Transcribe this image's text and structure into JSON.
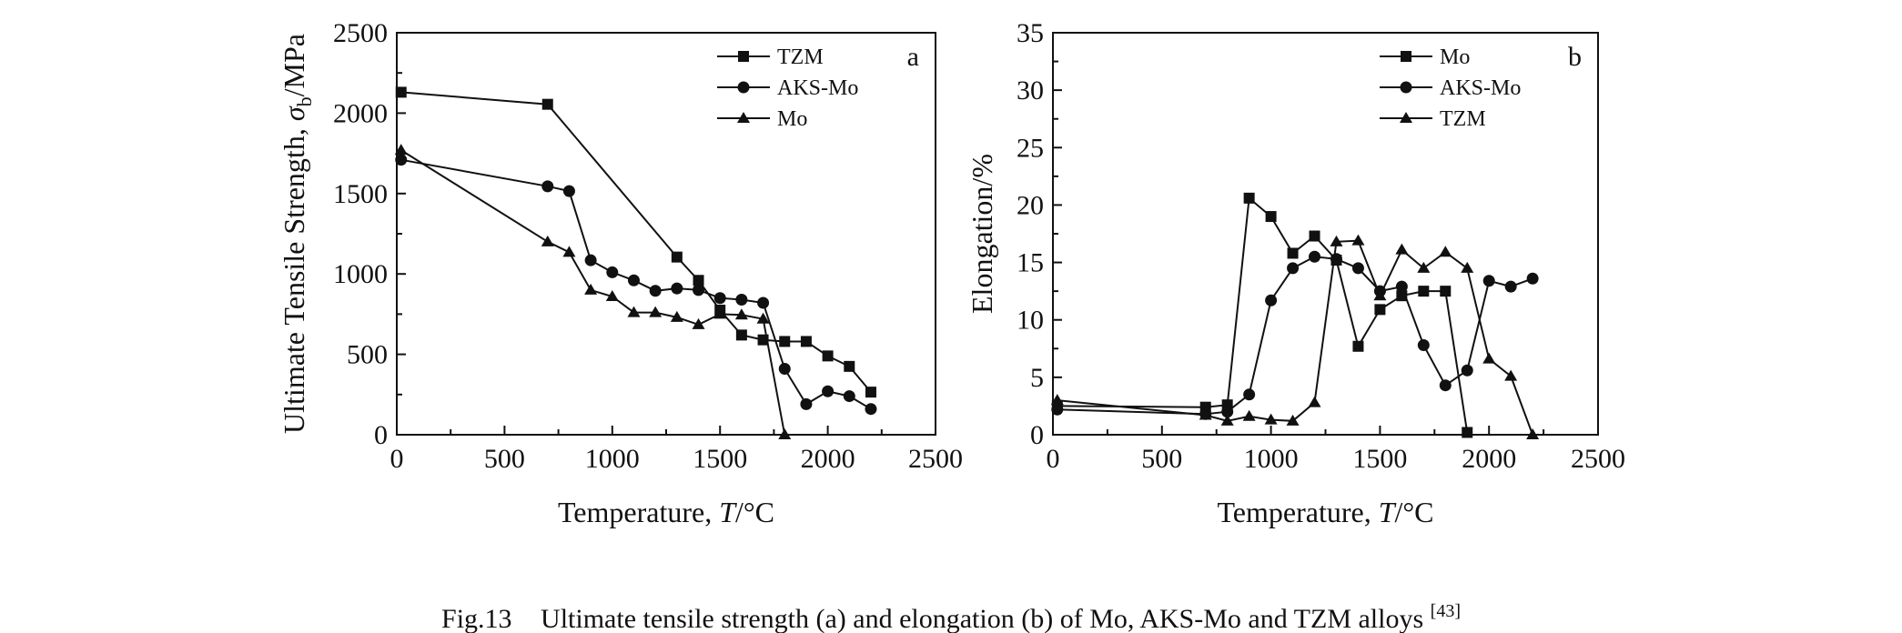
{
  "chart_data": [
    {
      "type": "line",
      "panel_label": "a",
      "xlabel_parts": [
        "Temperature, ",
        "T",
        "/°C"
      ],
      "ylabel_parts": [
        "Ultimate Tensile Strength, ",
        "σ",
        "b",
        "/MPa"
      ],
      "xlim": [
        0,
        2500
      ],
      "ylim": [
        0,
        2500
      ],
      "xticks": [
        0,
        500,
        1000,
        1500,
        2000,
        2500
      ],
      "yticks": [
        0,
        500,
        1000,
        1500,
        2000,
        2500
      ],
      "grid": false,
      "legend_position": "top-right",
      "series": [
        {
          "name": "TZM",
          "marker": "square",
          "points": [
            [
              20,
              2130
            ],
            [
              700,
              2055
            ],
            [
              1300,
              1105
            ],
            [
              1400,
              960
            ],
            [
              1500,
              775
            ],
            [
              1600,
              620
            ],
            [
              1700,
              590
            ],
            [
              1800,
              580
            ],
            [
              1900,
              580
            ],
            [
              2000,
              490
            ],
            [
              2100,
              425
            ],
            [
              2200,
              265
            ]
          ]
        },
        {
          "name": "AKS-Mo",
          "marker": "circle",
          "points": [
            [
              20,
              1710
            ],
            [
              700,
              1545
            ],
            [
              800,
              1515
            ],
            [
              900,
              1085
            ],
            [
              1000,
              1010
            ],
            [
              1100,
              960
            ],
            [
              1200,
              895
            ],
            [
              1300,
              910
            ],
            [
              1400,
              900
            ],
            [
              1500,
              850
            ],
            [
              1600,
              840
            ],
            [
              1700,
              820
            ],
            [
              1800,
              410
            ],
            [
              1900,
              190
            ],
            [
              2000,
              270
            ],
            [
              2100,
              240
            ],
            [
              2200,
              160
            ]
          ]
        },
        {
          "name": "Mo",
          "marker": "triangle",
          "points": [
            [
              20,
              1770
            ],
            [
              700,
              1200
            ],
            [
              800,
              1135
            ],
            [
              900,
              900
            ],
            [
              1000,
              860
            ],
            [
              1100,
              760
            ],
            [
              1200,
              760
            ],
            [
              1300,
              730
            ],
            [
              1400,
              685
            ],
            [
              1500,
              750
            ],
            [
              1600,
              745
            ],
            [
              1700,
              720
            ],
            [
              1800,
              0
            ]
          ]
        }
      ]
    },
    {
      "type": "line",
      "panel_label": "b",
      "xlabel_parts": [
        "Temperature, ",
        "T",
        "/°C"
      ],
      "ylabel_parts": [
        "Elongation/%"
      ],
      "xlim": [
        0,
        2500
      ],
      "ylim": [
        0,
        35
      ],
      "xticks": [
        0,
        500,
        1000,
        1500,
        2000,
        2500
      ],
      "yticks": [
        0,
        5,
        10,
        15,
        20,
        25,
        30,
        35
      ],
      "grid": false,
      "legend_position": "top-right",
      "series": [
        {
          "name": "Mo",
          "marker": "square",
          "points": [
            [
              20,
              2.5
            ],
            [
              700,
              2.4
            ],
            [
              800,
              2.6
            ],
            [
              900,
              20.6
            ],
            [
              1000,
              19.0
            ],
            [
              1100,
              15.8
            ],
            [
              1200,
              17.3
            ],
            [
              1300,
              15.2
            ],
            [
              1400,
              7.7
            ],
            [
              1500,
              10.9
            ],
            [
              1600,
              12.1
            ],
            [
              1700,
              12.5
            ],
            [
              1800,
              12.5
            ],
            [
              1900,
              0.2
            ]
          ]
        },
        {
          "name": "AKS-Mo",
          "marker": "circle",
          "points": [
            [
              20,
              2.2
            ],
            [
              700,
              1.8
            ],
            [
              800,
              2.0
            ],
            [
              900,
              3.5
            ],
            [
              1000,
              11.7
            ],
            [
              1100,
              14.5
            ],
            [
              1200,
              15.5
            ],
            [
              1300,
              15.3
            ],
            [
              1400,
              14.5
            ],
            [
              1500,
              12.5
            ],
            [
              1600,
              12.9
            ],
            [
              1700,
              7.8
            ],
            [
              1800,
              4.3
            ],
            [
              1900,
              5.6
            ],
            [
              2000,
              13.4
            ],
            [
              2100,
              12.9
            ],
            [
              2200,
              13.6
            ]
          ]
        },
        {
          "name": "TZM",
          "marker": "triangle",
          "points": [
            [
              20,
              3.0
            ],
            [
              700,
              1.7
            ],
            [
              800,
              1.2
            ],
            [
              900,
              1.6
            ],
            [
              1000,
              1.3
            ],
            [
              1100,
              1.2
            ],
            [
              1200,
              2.8
            ],
            [
              1300,
              16.8
            ],
            [
              1400,
              16.9
            ],
            [
              1500,
              12.1
            ],
            [
              1600,
              16.1
            ],
            [
              1700,
              14.5
            ],
            [
              1800,
              15.9
            ],
            [
              1900,
              14.5
            ],
            [
              2000,
              6.6
            ],
            [
              2100,
              5.1
            ],
            [
              2200,
              0.0
            ]
          ]
        }
      ]
    }
  ],
  "caption": {
    "prefix": "Fig.13",
    "text": "Ultimate tensile strength (a) and elongation (b) of Mo, AKS-Mo and TZM alloys",
    "reference": "[43]"
  }
}
